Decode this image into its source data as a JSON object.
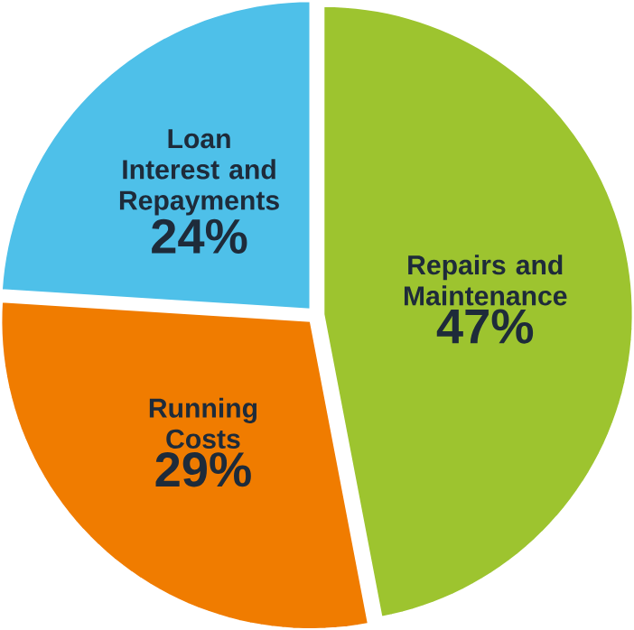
{
  "chart_data": {
    "type": "pie",
    "categories": [
      "Repairs and Maintenance",
      "Running Costs",
      "Loan Interest and Repayments"
    ],
    "values": [
      47,
      29,
      24
    ],
    "value_labels": [
      "47%",
      "29%",
      "24%"
    ],
    "colors": [
      "#9dc42f",
      "#f07c00",
      "#4ec0e9"
    ]
  }
}
